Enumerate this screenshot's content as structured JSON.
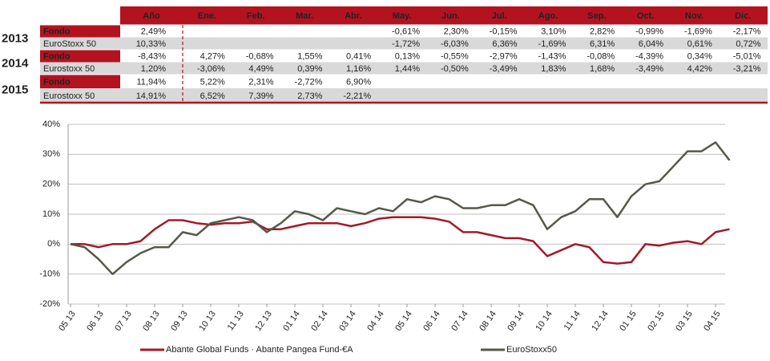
{
  "table": {
    "header": [
      "Año",
      "Ene.",
      "Feb.",
      "Mar.",
      "Abr.",
      "May.",
      "Jun.",
      "Jul.",
      "Ago.",
      "Sep.",
      "Oct.",
      "Nov.",
      "Dic."
    ],
    "groups": [
      {
        "year": "2013",
        "rows": [
          {
            "label": "Fondo",
            "cells": [
              "2,49%",
              null,
              null,
              null,
              null,
              "-0,61%",
              "2,30%",
              "-0,15%",
              "3,10%",
              "2,82%",
              "-0,99%",
              "-1,69%",
              "-2,17%"
            ]
          },
          {
            "label": "EuroStoxx 50",
            "cells": [
              "10,33%",
              null,
              null,
              null,
              null,
              "-1,72%",
              "-6,03%",
              "6,36%",
              "-1,69%",
              "6,31%",
              "6,04%",
              "0,61%",
              "0,72%"
            ]
          }
        ]
      },
      {
        "year": "2014",
        "rows": [
          {
            "label": "Fondo",
            "cells": [
              "-8,43%",
              "4,27%",
              "-0,68%",
              "1,55%",
              "0,41%",
              "0,13%",
              "-0,55%",
              "-2,97%",
              "-1,43%",
              "-0,08%",
              "-4,39%",
              "0,34%",
              "-5,01%"
            ]
          },
          {
            "label": "Eurostoxx 50",
            "cells": [
              "1,20%",
              "-3,06%",
              "4,49%",
              "0,39%",
              "1,16%",
              "1,44%",
              "-0,50%",
              "-3,49%",
              "1,83%",
              "1,68%",
              "-3,49%",
              "4,42%",
              "-3,21%"
            ]
          }
        ]
      },
      {
        "year": "2015",
        "rows": [
          {
            "label": "Fondo",
            "cells": [
              "11,94%",
              "5,22%",
              "2,31%",
              "-2,72%",
              "6,90%",
              null,
              null,
              null,
              null,
              null,
              null,
              null,
              null
            ]
          },
          {
            "label": "Eurostoxx 50",
            "cells": [
              "14,91%",
              "6,52%",
              "7,39%",
              "2,73%",
              "-2,21%",
              null,
              null,
              null,
              null,
              null,
              null,
              null,
              null
            ]
          }
        ]
      }
    ]
  },
  "chart_data": {
    "type": "line",
    "categories": [
      "05 13",
      null,
      "06 13",
      null,
      "07 13",
      null,
      "08 13",
      null,
      "09 13",
      null,
      "10 13",
      null,
      "11 13",
      null,
      "12 13",
      null,
      "01 14",
      null,
      "02 14",
      null,
      "03 14",
      null,
      "04 14",
      null,
      "05 14",
      null,
      "06 14",
      null,
      "07 14",
      null,
      "08 14",
      null,
      "09 14",
      null,
      "10 14",
      null,
      "11 14",
      null,
      "12 14",
      null,
      "01 15",
      null,
      "02 15",
      null,
      "03 15",
      null,
      "04 15",
      null
    ],
    "series": [
      {
        "name": "Abante Global Funds · Abante Pangea Fund-€A",
        "color": "#a3192b",
        "values": [
          0,
          0,
          -1,
          0,
          0,
          1,
          5,
          8,
          8,
          7,
          6.5,
          7,
          7,
          7.5,
          5,
          5,
          6,
          7,
          7,
          7,
          6,
          7,
          8.5,
          9,
          9,
          9,
          8.5,
          7.5,
          4,
          4,
          3,
          2,
          2,
          1,
          -4,
          -2,
          0,
          -1,
          -6,
          -6.5,
          -6,
          0,
          -0.5,
          0.5,
          1,
          0,
          4,
          5
        ]
      },
      {
        "name": "EuroStoxx50",
        "color": "#545a4a",
        "values": [
          0,
          -1,
          -5,
          -10,
          -6,
          -3,
          -1,
          -1,
          4,
          3,
          7,
          8,
          9,
          8,
          4,
          7,
          11,
          10,
          8,
          12,
          11,
          10,
          12,
          11,
          15,
          14,
          16,
          15,
          12,
          12,
          13,
          13,
          15,
          13,
          5,
          9,
          11,
          15,
          15,
          9,
          16,
          20,
          21,
          26,
          31,
          31,
          34,
          28
        ]
      }
    ],
    "ylim": [
      -20,
      40
    ],
    "yticks": [
      {
        "value": -20,
        "label": "-20%"
      },
      {
        "value": -10,
        "label": "-10%"
      },
      {
        "value": 0,
        "label": "0%"
      },
      {
        "value": 10,
        "label": "10%"
      },
      {
        "value": 20,
        "label": "20%"
      },
      {
        "value": 30,
        "label": "30%"
      },
      {
        "value": 40,
        "label": "40%"
      }
    ],
    "grid": true
  }
}
